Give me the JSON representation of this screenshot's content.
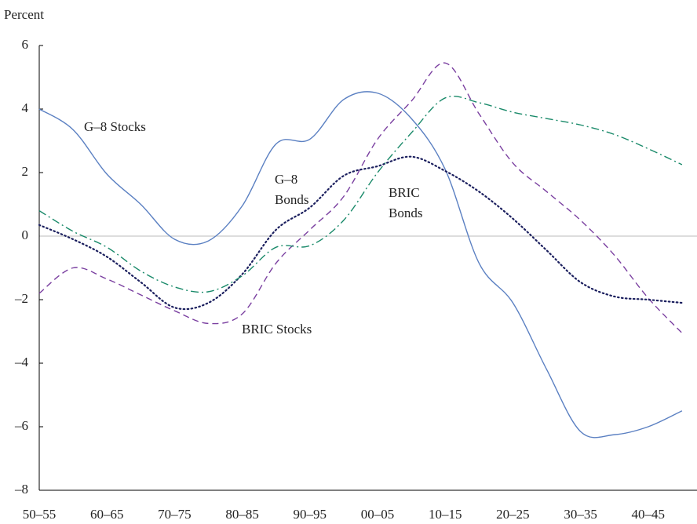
{
  "chart_data": {
    "type": "line",
    "y_label": "Percent",
    "categories": [
      "50–55",
      null,
      "60–65",
      null,
      "70–75",
      null,
      "80–85",
      null,
      "90–95",
      null,
      "00–05",
      null,
      "10–15",
      null,
      "20–25",
      null,
      "30–35",
      null,
      "40–45",
      null
    ],
    "series": [
      {
        "color": "#5b80c2",
        "style": "solid",
        "values": [
          4.0,
          3.35,
          1.95,
          1.0,
          -0.1,
          -0.15,
          0.95,
          2.9,
          3.05,
          4.3,
          4.5,
          3.7,
          2.1,
          -0.85,
          -2.1,
          -4.2,
          -6.15,
          -6.25,
          -6.0,
          -5.5
        ]
      },
      {
        "color": "#7a3fa0",
        "style": "dashed",
        "values": [
          -1.8,
          -1.0,
          -1.35,
          -1.85,
          -2.35,
          -2.75,
          -2.45,
          -0.85,
          0.2,
          1.25,
          3.05,
          4.25,
          5.45,
          3.85,
          2.3,
          1.4,
          0.5,
          -0.6,
          -1.95,
          -3.05
        ]
      },
      {
        "color": "#1b1f5e",
        "style": "dotted",
        "values": [
          0.35,
          -0.1,
          -0.65,
          -1.45,
          -2.25,
          -2.1,
          -1.2,
          0.2,
          0.9,
          1.9,
          2.2,
          2.5,
          2.05,
          1.4,
          0.55,
          -0.45,
          -1.45,
          -1.9,
          -2.0,
          -2.1
        ]
      },
      {
        "color": "#1a8a6a",
        "style": "dashdot",
        "values": [
          0.8,
          0.15,
          -0.35,
          -1.1,
          -1.6,
          -1.75,
          -1.25,
          -0.35,
          -0.3,
          0.5,
          2.0,
          3.25,
          4.35,
          4.2,
          3.9,
          3.7,
          3.5,
          3.2,
          2.75,
          2.25
        ]
      }
    ],
    "annotations": [
      [
        "G–8 Stocks"
      ],
      [
        "G–8",
        "Bonds"
      ],
      [
        "BRIC",
        "Bonds"
      ],
      [
        "BRIC Stocks"
      ]
    ],
    "ylim": [
      -8,
      6
    ],
    "yticks": [
      {
        "value": -8,
        "label": "–8"
      },
      {
        "value": -6,
        "label": "–6"
      },
      {
        "value": -4,
        "label": "–4"
      },
      {
        "value": -2,
        "label": "–2"
      },
      0,
      2,
      4,
      6
    ],
    "zero_line": true,
    "grid": false
  }
}
